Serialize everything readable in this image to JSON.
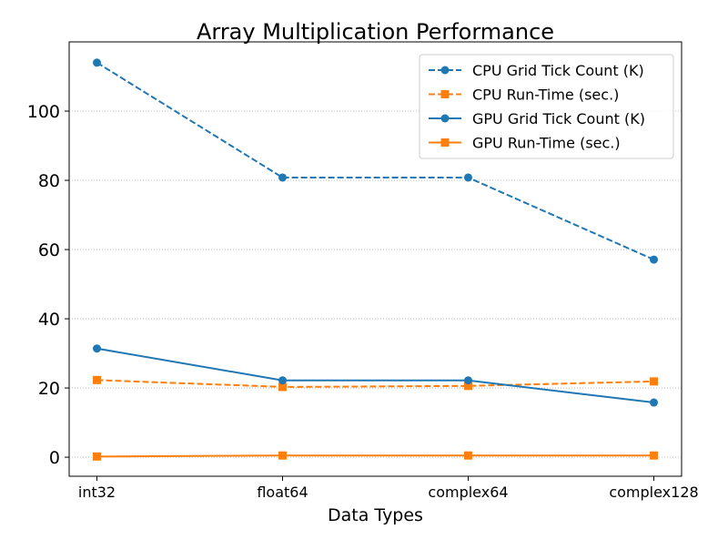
{
  "chart_data": {
    "type": "line",
    "title": "Array Multiplication Performance",
    "xlabel": "Data Types",
    "ylabel": "",
    "categories": [
      "int32",
      "float64",
      "complex64",
      "complex128"
    ],
    "ylim": [
      -5.5,
      120
    ],
    "yticks": [
      0,
      20,
      40,
      60,
      80,
      100
    ],
    "grid": "horizontal dotted",
    "legend_position": "top-right",
    "series": [
      {
        "name": "CPU Grid Tick Count (K)",
        "values": [
          114,
          80.8,
          80.8,
          57.1
        ],
        "color": "#1f77b4",
        "linestyle": "dashed",
        "marker": "circle"
      },
      {
        "name": "CPU Run-Time (sec.)",
        "values": [
          22.3,
          20.3,
          20.6,
          21.9
        ],
        "color": "#ff7f0e",
        "linestyle": "dashed",
        "marker": "square"
      },
      {
        "name": "GPU Grid Tick Count (K)",
        "values": [
          31.4,
          22.2,
          22.2,
          15.8
        ],
        "color": "#1f77b4",
        "linestyle": "solid",
        "marker": "circle"
      },
      {
        "name": "GPU Run-Time (sec.)",
        "values": [
          0.2,
          0.5,
          0.5,
          0.5
        ],
        "color": "#ff7f0e",
        "linestyle": "solid",
        "marker": "square"
      }
    ]
  }
}
